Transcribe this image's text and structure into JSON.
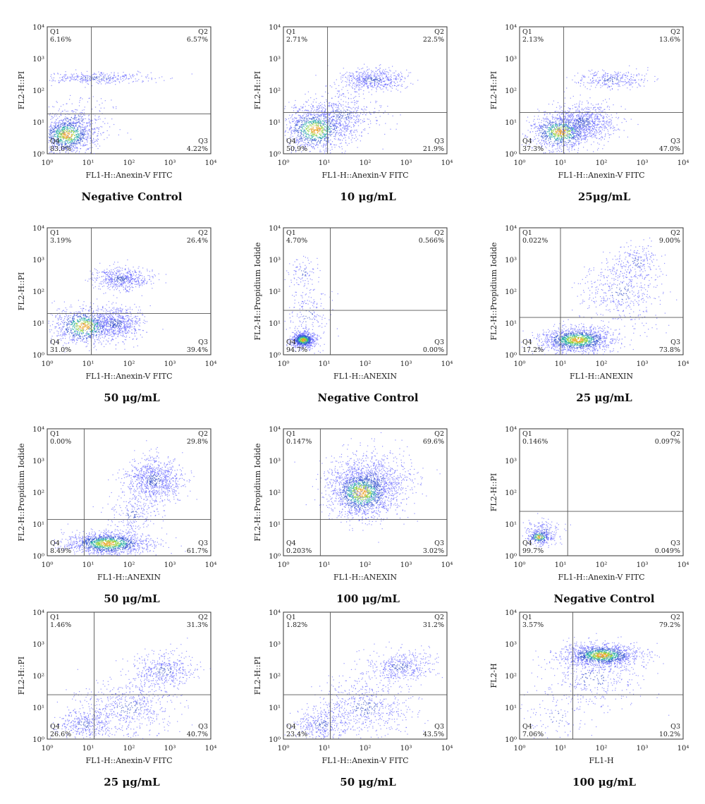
{
  "chart_data": [
    {
      "type": "scatter",
      "caption": "Negative Control",
      "xlabel": "FL1-H::Anexin-V FITC",
      "ylabel": "FL2-H::PI",
      "x_ticks": [
        "10⁰",
        "10¹",
        "10²",
        "10³",
        "10⁴"
      ],
      "y_ticks": [
        "10⁰",
        "10¹",
        "10²",
        "10³",
        "10⁴"
      ],
      "scale": "log",
      "xlim": [
        1,
        10000
      ],
      "ylim": [
        1,
        10000
      ],
      "gate": {
        "x": 12,
        "y": 18
      },
      "quadrants": {
        "Q1": "6.16%",
        "Q2": "6.57%",
        "Q3": "4.22%",
        "Q4": "83.0%"
      },
      "clusters": [
        {
          "x": 3,
          "y": 4,
          "spread": [
            0.35,
            0.3
          ],
          "n": 1100,
          "hot": true
        },
        {
          "x": 5,
          "y": 12,
          "spread": [
            0.55,
            0.4
          ],
          "n": 250
        },
        {
          "x": 15,
          "y": 250,
          "spread": [
            0.75,
            0.09
          ],
          "n": 350
        }
      ]
    },
    {
      "type": "scatter",
      "caption": "10 μg/mL",
      "xlabel": "FL1-H::Anexin-V FITC",
      "ylabel": "FL2-H::PI",
      "x_ticks": [
        "10⁰",
        "10¹",
        "10²",
        "10³",
        "10⁴"
      ],
      "y_ticks": [
        "10⁰",
        "10¹",
        "10²",
        "10³",
        "10⁴"
      ],
      "scale": "log",
      "xlim": [
        1,
        10000
      ],
      "ylim": [
        1,
        10000
      ],
      "gate": {
        "x": 12,
        "y": 20
      },
      "quadrants": {
        "Q1": "2.71%",
        "Q2": "22.5%",
        "Q3": "21.9%",
        "Q4": "50.9%"
      },
      "clusters": [
        {
          "x": 6,
          "y": 6,
          "spread": [
            0.4,
            0.35
          ],
          "n": 1100,
          "hot": true
        },
        {
          "x": 25,
          "y": 18,
          "spread": [
            0.5,
            0.4
          ],
          "n": 500
        },
        {
          "x": 150,
          "y": 220,
          "spread": [
            0.4,
            0.18
          ],
          "n": 550
        }
      ]
    },
    {
      "type": "scatter",
      "caption": "25μg/mL",
      "xlabel": "FL1-H::Anexin-V FITC",
      "ylabel": "FL2-H::PI",
      "x_ticks": [
        "10⁰",
        "10¹",
        "10²",
        "10³",
        "10⁴"
      ],
      "y_ticks": [
        "10⁰",
        "10¹",
        "10²",
        "10³",
        "10⁴"
      ],
      "scale": "log",
      "xlim": [
        1,
        10000
      ],
      "ylim": [
        1,
        10000
      ],
      "gate": {
        "x": 12,
        "y": 20
      },
      "quadrants": {
        "Q1": "2.13%",
        "Q2": "13.6%",
        "Q3": "47.0%",
        "Q4": "37.3%"
      },
      "clusters": [
        {
          "x": 10,
          "y": 5,
          "spread": [
            0.4,
            0.3
          ],
          "n": 1000,
          "hot": true
        },
        {
          "x": 35,
          "y": 10,
          "spread": [
            0.4,
            0.3
          ],
          "n": 800
        },
        {
          "x": 180,
          "y": 220,
          "spread": [
            0.45,
            0.15
          ],
          "n": 300
        }
      ]
    },
    {
      "type": "scatter",
      "caption": "50 μg/mL",
      "xlabel": "FL1-H::Anexin-V FITC",
      "ylabel": "FL2-H::PI",
      "x_ticks": [
        "10⁰",
        "10¹",
        "10²",
        "10³",
        "10⁴"
      ],
      "y_ticks": [
        "10⁰",
        "10¹",
        "10²",
        "10³",
        "10⁴"
      ],
      "scale": "log",
      "xlim": [
        1,
        10000
      ],
      "ylim": [
        1,
        10000
      ],
      "gate": {
        "x": 12,
        "y": 20
      },
      "quadrants": {
        "Q1": "3.19%",
        "Q2": "26.4%",
        "Q3": "39.4%",
        "Q4": "31.0%"
      },
      "clusters": [
        {
          "x": 8,
          "y": 8,
          "spread": [
            0.4,
            0.3
          ],
          "n": 900,
          "hot": true
        },
        {
          "x": 45,
          "y": 10,
          "spread": [
            0.35,
            0.25
          ],
          "n": 700
        },
        {
          "x": 60,
          "y": 250,
          "spread": [
            0.35,
            0.18
          ],
          "n": 550
        }
      ]
    },
    {
      "type": "scatter",
      "caption": "Negative Control",
      "xlabel": "FL1-H::ANEXIN",
      "ylabel": "FL2-H::Propidium Iodide",
      "x_ticks": [
        "10⁰",
        "10¹",
        "10²",
        "10³",
        "10⁴"
      ],
      "y_ticks": [
        "10⁰",
        "10¹",
        "10²",
        "10³",
        "10⁴"
      ],
      "scale": "log",
      "xlim": [
        1,
        10000
      ],
      "ylim": [
        1,
        10000
      ],
      "gate": {
        "x": 14,
        "y": 25
      },
      "quadrants": {
        "Q1": "4.70%",
        "Q2": "0.566%",
        "Q3": "0.00%",
        "Q4": "94.7%"
      },
      "clusters": [
        {
          "x": 3,
          "y": 3,
          "spread": [
            0.15,
            0.12
          ],
          "n": 800,
          "hot": true
        },
        {
          "x": 4,
          "y": 20,
          "spread": [
            0.25,
            0.6
          ],
          "n": 220
        },
        {
          "x": 3,
          "y": 400,
          "spread": [
            0.2,
            0.25
          ],
          "n": 80
        }
      ]
    },
    {
      "type": "scatter",
      "caption": "25 μg/mL",
      "xlabel": "FL1-H::ANEXIN",
      "ylabel": "FL2-H::Propidium Iodide",
      "x_ticks": [
        "10⁰",
        "10¹",
        "10²",
        "10³",
        "10⁴"
      ],
      "y_ticks": [
        "10⁰",
        "10¹",
        "10²",
        "10³",
        "10⁴"
      ],
      "scale": "log",
      "xlim": [
        1,
        10000
      ],
      "ylim": [
        1,
        10000
      ],
      "gate": {
        "x": 10,
        "y": 15
      },
      "quadrants": {
        "Q1": "0.022%",
        "Q2": "9.00%",
        "Q3": "73.8%",
        "Q4": "17.2%"
      },
      "clusters": [
        {
          "x": 25,
          "y": 3,
          "spread": [
            0.45,
            0.2
          ],
          "n": 1400,
          "hot": true
        },
        {
          "x": 300,
          "y": 100,
          "spread": [
            0.5,
            0.55
          ],
          "n": 450
        },
        {
          "x": 700,
          "y": 800,
          "spread": [
            0.3,
            0.3
          ],
          "n": 200
        }
      ]
    },
    {
      "type": "scatter",
      "caption": "50 μg/mL",
      "xlabel": "FL1-H::ANEXIN",
      "ylabel": "FL2-H::Propidium Iodide",
      "x_ticks": [
        "10⁰",
        "10¹",
        "10²",
        "10³",
        "10⁴"
      ],
      "y_ticks": [
        "10⁰",
        "10¹",
        "10²",
        "10³",
        "10⁴"
      ],
      "scale": "log",
      "xlim": [
        1,
        10000
      ],
      "ylim": [
        1,
        10000
      ],
      "gate": {
        "x": 8,
        "y": 14
      },
      "quadrants": {
        "Q1": "0.00%",
        "Q2": "29.8%",
        "Q3": "61.7%",
        "Q4": "8.49%"
      },
      "clusters": [
        {
          "x": 30,
          "y": 2.5,
          "spread": [
            0.5,
            0.18
          ],
          "n": 1400,
          "hot": true
        },
        {
          "x": 400,
          "y": 250,
          "spread": [
            0.35,
            0.35
          ],
          "n": 900
        },
        {
          "x": 120,
          "y": 20,
          "spread": [
            0.3,
            0.3
          ],
          "n": 200
        }
      ]
    },
    {
      "type": "scatter",
      "caption": "100 μg/mL",
      "xlabel": "FL1-H::ANEXIN",
      "ylabel": "FL2-H::Propidium Iodide",
      "x_ticks": [
        "10⁰",
        "10¹",
        "10²",
        "10³",
        "10⁴"
      ],
      "y_ticks": [
        "10⁰",
        "10¹",
        "10²",
        "10³",
        "10⁴"
      ],
      "scale": "log",
      "xlim": [
        1,
        10000
      ],
      "ylim": [
        1,
        10000
      ],
      "gate": {
        "x": 8,
        "y": 14
      },
      "quadrants": {
        "Q1": "0.147%",
        "Q2": "69.6%",
        "Q3": "3.02%",
        "Q4": "0.203%"
      },
      "clusters": [
        {
          "x": 80,
          "y": 100,
          "spread": [
            0.4,
            0.4
          ],
          "n": 1600,
          "hot": true
        },
        {
          "x": 150,
          "y": 250,
          "spread": [
            0.55,
            0.5
          ],
          "n": 700
        }
      ]
    },
    {
      "type": "scatter",
      "caption": "Negative Control",
      "xlabel": "FL1-H::Anexin-V FITC",
      "ylabel": "FL2-H::PI",
      "x_ticks": [
        "10⁰",
        "10¹",
        "10²",
        "10³",
        "10⁴"
      ],
      "y_ticks": [
        "10⁰",
        "10¹",
        "10²",
        "10³",
        "10⁴"
      ],
      "scale": "log",
      "xlim": [
        1,
        10000
      ],
      "ylim": [
        1,
        10000
      ],
      "gate": {
        "x": 15,
        "y": 25
      },
      "quadrants": {
        "Q1": "0.146%",
        "Q2": "0.097%",
        "Q3": "0.049%",
        "Q4": "99.7%"
      },
      "clusters": [
        {
          "x": 3,
          "y": 4,
          "spread": [
            0.15,
            0.12
          ],
          "n": 300,
          "hot": true
        },
        {
          "x": 4,
          "y": 6,
          "spread": [
            0.25,
            0.2
          ],
          "n": 150
        }
      ]
    },
    {
      "type": "scatter",
      "caption": "25 μg/mL",
      "xlabel": "FL1-H::Anexin-V FITC",
      "ylabel": "FL2-H::PI",
      "x_ticks": [
        "10⁰",
        "10¹",
        "10²",
        "10³",
        "10⁴"
      ],
      "y_ticks": [
        "10⁰",
        "10¹",
        "10²",
        "10³",
        "10⁴"
      ],
      "scale": "log",
      "xlim": [
        1,
        10000
      ],
      "ylim": [
        1,
        10000
      ],
      "gate": {
        "x": 14,
        "y": 25
      },
      "quadrants": {
        "Q1": "1.46%",
        "Q2": "31.3%",
        "Q3": "40.7%",
        "Q4": "26.6%"
      },
      "clusters": [
        {
          "x": 8,
          "y": 3,
          "spread": [
            0.35,
            0.25
          ],
          "n": 350
        },
        {
          "x": 100,
          "y": 10,
          "spread": [
            0.6,
            0.45
          ],
          "n": 600
        },
        {
          "x": 700,
          "y": 150,
          "spread": [
            0.4,
            0.3
          ],
          "n": 450
        }
      ]
    },
    {
      "type": "scatter",
      "caption": "50 μg/mL",
      "xlabel": "FL1-H::Anexin-V FITC",
      "ylabel": "FL2-H::PI",
      "x_ticks": [
        "10⁰",
        "10¹",
        "10²",
        "10³",
        "10⁴"
      ],
      "y_ticks": [
        "10⁰",
        "10¹",
        "10²",
        "10³",
        "10⁴"
      ],
      "scale": "log",
      "xlim": [
        1,
        10000
      ],
      "ylim": [
        1,
        10000
      ],
      "gate": {
        "x": 14,
        "y": 25
      },
      "quadrants": {
        "Q1": "1.82%",
        "Q2": "31.2%",
        "Q3": "43.5%",
        "Q4": "23.4%"
      },
      "clusters": [
        {
          "x": 8,
          "y": 3,
          "spread": [
            0.35,
            0.25
          ],
          "n": 350
        },
        {
          "x": 100,
          "y": 10,
          "spread": [
            0.6,
            0.45
          ],
          "n": 600
        },
        {
          "x": 700,
          "y": 200,
          "spread": [
            0.4,
            0.25
          ],
          "n": 450
        }
      ]
    },
    {
      "type": "scatter",
      "caption": "100 μg/mL",
      "xlabel": "FL1-H",
      "ylabel": "FL2-H",
      "x_ticks": [
        "10⁰",
        "10¹",
        "10²",
        "10³",
        "10⁴"
      ],
      "y_ticks": [
        "10⁰",
        "10¹",
        "10²",
        "10³",
        "10⁴"
      ],
      "scale": "log",
      "xlim": [
        1,
        10000
      ],
      "ylim": [
        1,
        10000
      ],
      "gate": {
        "x": 20,
        "y": 25
      },
      "quadrants": {
        "Q1": "3.57%",
        "Q2": "79.2%",
        "Q3": "10.2%",
        "Q4": "7.06%"
      },
      "clusters": [
        {
          "x": 100,
          "y": 450,
          "spread": [
            0.45,
            0.18
          ],
          "n": 1400,
          "hot": true
        },
        {
          "x": 60,
          "y": 80,
          "spread": [
            0.6,
            0.5
          ],
          "n": 400
        },
        {
          "x": 8,
          "y": 5,
          "spread": [
            0.4,
            0.4
          ],
          "n": 100
        }
      ]
    }
  ]
}
